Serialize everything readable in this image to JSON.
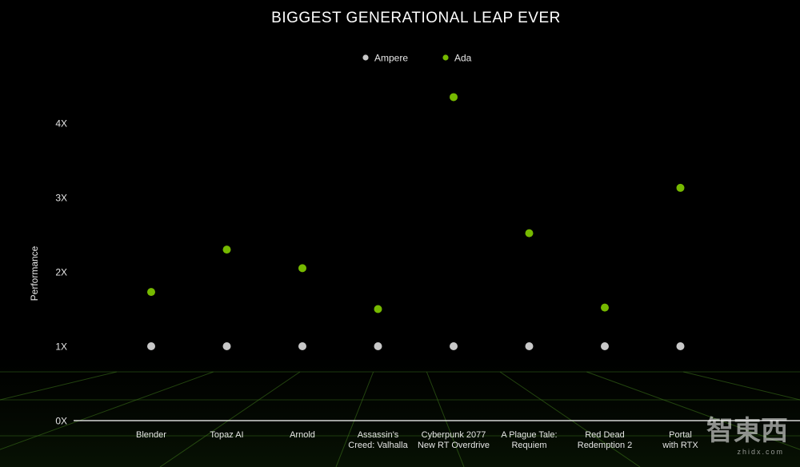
{
  "chart_data": {
    "type": "scatter",
    "title": "BIGGEST GENERATIONAL LEAP EVER",
    "xlabel": "",
    "ylabel": "Performance",
    "y_tick_labels": [
      "0X",
      "1X",
      "2X",
      "3X",
      "4X"
    ],
    "y_ticks": [
      0,
      1,
      2,
      3,
      4
    ],
    "ylim": [
      0,
      4.5
    ],
    "categories": [
      [
        "Blender"
      ],
      [
        "Topaz AI"
      ],
      [
        "Arnold"
      ],
      [
        "Assassin's",
        "Creed: Valhalla"
      ],
      [
        "Cyberpunk 2077",
        "New RT Overdrive"
      ],
      [
        "A Plague Tale:",
        "Requiem"
      ],
      [
        "Red Dead",
        "Redemption 2"
      ],
      [
        "Portal",
        "with RTX"
      ]
    ],
    "series": [
      {
        "name": "Ampere",
        "color": "#c8c8c8",
        "values": [
          1,
          1,
          1,
          1,
          1,
          1,
          1,
          1
        ]
      },
      {
        "name": "Ada",
        "color": "#76b900",
        "values": [
          1.73,
          2.3,
          2.05,
          1.5,
          4.35,
          2.52,
          1.52,
          3.13
        ]
      }
    ],
    "legend_position": "top-center",
    "grid": false
  },
  "watermark": {
    "main": "智東西",
    "sub": "zhidx.com"
  }
}
